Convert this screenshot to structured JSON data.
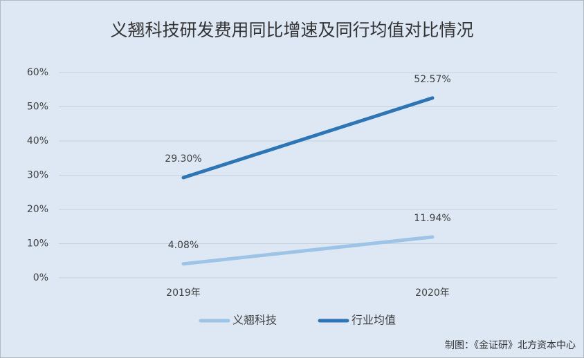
{
  "chart_data": {
    "type": "line",
    "title": "义翘科技研发费用同比增速及同行均值对比情况",
    "categories": [
      "2019年",
      "2020年"
    ],
    "series": [
      {
        "name": "义翘科技",
        "color": "#9dc3e6",
        "values": [
          4.08,
          11.94
        ],
        "value_labels": [
          "4.08%",
          "11.94%"
        ]
      },
      {
        "name": "行业均值",
        "color": "#2e75b6",
        "values": [
          29.3,
          52.57
        ],
        "value_labels": [
          "29.30%",
          "52.57%"
        ]
      }
    ],
    "ylim": [
      0,
      60
    ],
    "yticks": [
      {
        "value": 0,
        "label": "0%"
      },
      {
        "value": 10,
        "label": "10%"
      },
      {
        "value": 20,
        "label": "20%"
      },
      {
        "value": 30,
        "label": "30%"
      },
      {
        "value": 40,
        "label": "40%"
      },
      {
        "value": 50,
        "label": "50%"
      },
      {
        "value": 60,
        "label": "60%"
      }
    ],
    "grid": true,
    "legend": "bottom",
    "source": "制图：《金证研》北方资本中心"
  }
}
